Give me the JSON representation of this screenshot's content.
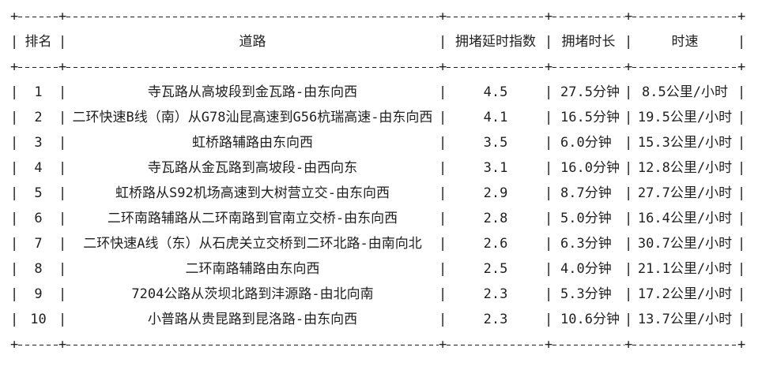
{
  "glyphs": {
    "pipe": "|",
    "plus": "+"
  },
  "table": {
    "headers": [
      "排名",
      "道路",
      "拥堵延时指数",
      "拥堵时长",
      "时速"
    ],
    "rows": [
      {
        "rank": "1",
        "road": "寺瓦路从高坡段到金瓦路-由东向西",
        "index": "4.5",
        "duration": "27.5分钟",
        "speed": "8.5公里/小时"
      },
      {
        "rank": "2",
        "road": "二环快速B线（南）从G78汕昆高速到G56杭瑞高速-由东向西",
        "index": "4.1",
        "duration": "16.5分钟",
        "speed": "19.5公里/小时"
      },
      {
        "rank": "3",
        "road": "虹桥路辅路由东向西",
        "index": "3.5",
        "duration": "6.0分钟",
        "speed": "15.3公里/小时"
      },
      {
        "rank": "4",
        "road": "寺瓦路从金瓦路到高坡段-由西向东",
        "index": "3.1",
        "duration": "16.0分钟",
        "speed": "12.8公里/小时"
      },
      {
        "rank": "5",
        "road": "虹桥路从S92机场高速到大树营立交-由东向西",
        "index": "2.9",
        "duration": "8.7分钟",
        "speed": "27.7公里/小时"
      },
      {
        "rank": "6",
        "road": "二环南路辅路从二环南路到官南立交桥-由东向西",
        "index": "2.8",
        "duration": "5.0分钟",
        "speed": "16.4公里/小时"
      },
      {
        "rank": "7",
        "road": "二环快速A线（东）从石虎关立交桥到二环北路-由南向北",
        "index": "2.6",
        "duration": "6.3分钟",
        "speed": "30.7公里/小时"
      },
      {
        "rank": "8",
        "road": "二环南路辅路由东向西",
        "index": "2.5",
        "duration": "4.0分钟",
        "speed": "21.1公里/小时"
      },
      {
        "rank": "9",
        "road": "7204公路从茨坝北路到沣源路-由北向南",
        "index": "2.3",
        "duration": "5.3分钟",
        "speed": "17.2公里/小时"
      },
      {
        "rank": "10",
        "road": "小普路从贵昆路到昆洛路-由东向西",
        "index": "2.3",
        "duration": "10.6分钟",
        "speed": "13.7公里/小时"
      }
    ]
  }
}
